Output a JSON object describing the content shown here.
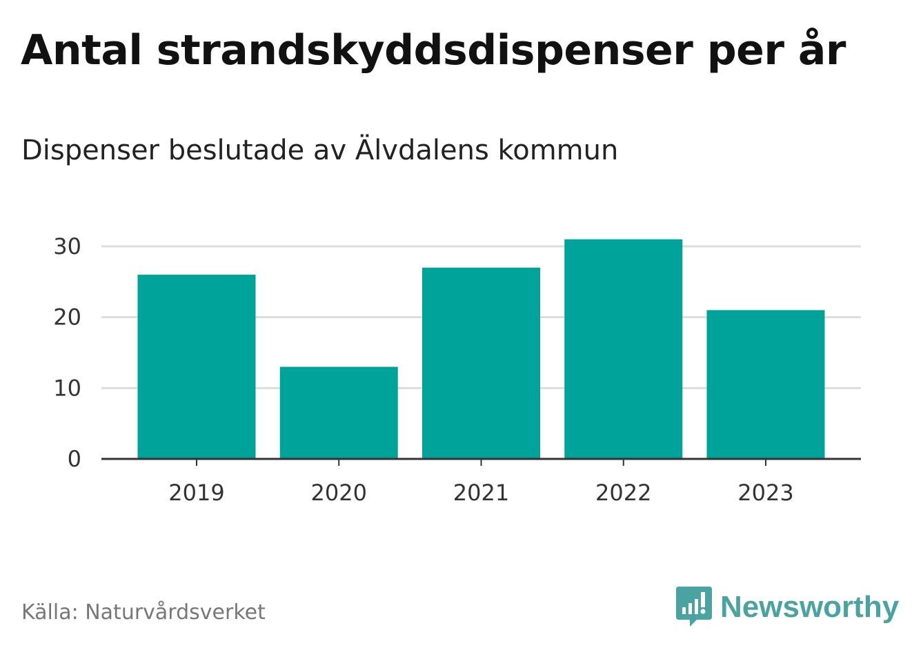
{
  "header": {
    "title": "Antal strandskyddsdispenser per år",
    "subtitle": "Dispenser beslutade av Älvdalens kommun"
  },
  "footer": {
    "source": "Källa: Naturvårdsverket",
    "brand": "Newsworthy",
    "brand_icon": "newsworthy-logo-icon"
  },
  "colors": {
    "bar": "#00a39a",
    "grid": "#dddddd",
    "axis": "#333333",
    "brand": "#4aa3a1"
  },
  "chart_data": {
    "type": "bar",
    "title": "Antal strandskyddsdispenser per år",
    "subtitle": "Dispenser beslutade av Älvdalens kommun",
    "categories": [
      "2019",
      "2020",
      "2021",
      "2022",
      "2023"
    ],
    "values": [
      26,
      13,
      27,
      31,
      21
    ],
    "xlabel": "",
    "ylabel": "",
    "ylim": [
      0,
      30
    ],
    "yticks": [
      0,
      10,
      20,
      30
    ],
    "grid": true,
    "legend": "none"
  }
}
